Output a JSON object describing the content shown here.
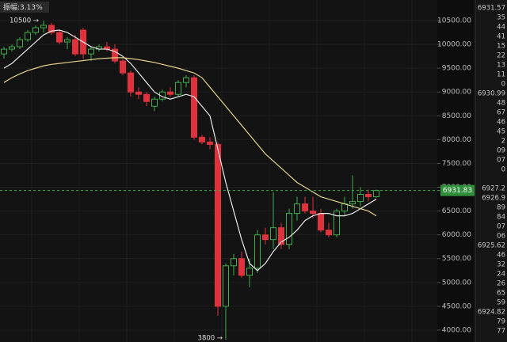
{
  "chart_data": {
    "type": "candlestick",
    "amplitude_label": "振幅:3.13%",
    "open": [
      9800,
      9900,
      9950,
      10100,
      10250,
      10350,
      10400,
      10250,
      10050,
      10100,
      10300,
      9800,
      9900,
      9950,
      9900,
      9650,
      9400,
      9000,
      8950,
      8700,
      8850,
      9000,
      8950,
      9200,
      9300,
      8050,
      7950,
      7900,
      4500,
      5350,
      5500,
      5150,
      5300,
      6000,
      5900,
      6150,
      5800,
      6450,
      6650,
      6500,
      6450,
      6100,
      6000,
      6500,
      6650,
      6700,
      6850,
      6800
    ],
    "high": [
      9950,
      10000,
      10150,
      10300,
      10400,
      10500,
      10450,
      10300,
      10150,
      10200,
      10350,
      9950,
      10000,
      10050,
      10000,
      9700,
      9450,
      9100,
      9000,
      8900,
      9050,
      9100,
      9250,
      9350,
      9350,
      8100,
      8050,
      7950,
      5400,
      5600,
      5650,
      5500,
      6100,
      6150,
      6900,
      6250,
      6550,
      6800,
      6800,
      6800,
      6550,
      6250,
      6550,
      6800,
      7250,
      7000,
      6950,
      6950
    ],
    "low": [
      9700,
      9850,
      9900,
      10050,
      10200,
      10250,
      10200,
      10000,
      9900,
      9750,
      9700,
      9650,
      9850,
      9850,
      9600,
      9350,
      8900,
      8850,
      8700,
      8600,
      8800,
      8900,
      8900,
      9100,
      8000,
      7900,
      7800,
      4300,
      3800,
      5150,
      5100,
      4900,
      5200,
      5800,
      5700,
      5700,
      5700,
      6300,
      6450,
      6350,
      6050,
      5950,
      5950,
      6400,
      6550,
      6600,
      6700,
      6780
    ],
    "close": [
      9900,
      9950,
      10100,
      10250,
      10350,
      10400,
      10250,
      10050,
      10100,
      9800,
      9800,
      9900,
      9950,
      9900,
      9650,
      9400,
      9000,
      8950,
      8800,
      8850,
      9000,
      8950,
      9200,
      9300,
      8050,
      7950,
      7900,
      4500,
      5350,
      5500,
      5150,
      5300,
      6000,
      5900,
      6150,
      5800,
      6450,
      6650,
      6500,
      6450,
      6100,
      6000,
      6500,
      6650,
      6700,
      6850,
      6800,
      6931.83
    ],
    "up_color": "#3fae49",
    "down_color": "#e0323c",
    "series": [
      {
        "color": "#e8e8e8",
        "values": [
          9500,
          9600,
          9750,
          9900,
          10050,
          10200,
          10280,
          10300,
          10250,
          10150,
          10050,
          9950,
          9900,
          9900,
          9850,
          9750,
          9600,
          9400,
          9200,
          9000,
          8900,
          8850,
          8900,
          8950,
          8900,
          8700,
          8500,
          7800,
          7100,
          6500,
          5900,
          5400,
          5250,
          5400,
          5650,
          5850,
          5950,
          6100,
          6300,
          6400,
          6450,
          6450,
          6400,
          6400,
          6450,
          6550,
          6650,
          6750
        ]
      },
      {
        "color": "#e3d38a",
        "values": [
          9200,
          9300,
          9380,
          9450,
          9500,
          9550,
          9580,
          9600,
          9620,
          9640,
          9660,
          9680,
          9700,
          9710,
          9720,
          9720,
          9700,
          9680,
          9650,
          9620,
          9580,
          9540,
          9500,
          9450,
          9400,
          9300,
          9100,
          8900,
          8700,
          8500,
          8300,
          8100,
          7900,
          7700,
          7550,
          7400,
          7250,
          7100,
          7000,
          6900,
          6800,
          6750,
          6700,
          6650,
          6600,
          6550,
          6500,
          6400
        ]
      }
    ],
    "ylim": [
      3750,
      10932
    ],
    "yticks": [
      {
        "value": 4000,
        "label": "4000.00"
      },
      {
        "value": 4500,
        "label": "4500.00"
      },
      {
        "value": 5000,
        "label": "5000.00"
      },
      {
        "value": 5500,
        "label": "5500.00"
      },
      {
        "value": 6000,
        "label": "6000.00"
      },
      {
        "value": 6500,
        "label": "6500.00"
      },
      {
        "value": 7000,
        "label": "7000.00"
      },
      {
        "value": 7500,
        "label": "7500.00"
      },
      {
        "value": 8000,
        "label": "8000.00"
      },
      {
        "value": 8500,
        "label": "8500.00"
      },
      {
        "value": 9000,
        "label": "9000.00"
      },
      {
        "value": 9500,
        "label": "9500.00"
      },
      {
        "value": 10000,
        "label": "10000.00"
      },
      {
        "value": 10500,
        "label": "10500.00"
      }
    ],
    "grid": true,
    "last_price": 6931.83,
    "max_annotation": "10500 →",
    "min_annotation": "3800 →"
  },
  "side_panel": [
    "6931.57",
    "35",
    "44",
    "41",
    "15",
    "22",
    "13",
    "11",
    "0",
    "6930.99",
    "48",
    "67",
    "46",
    "45",
    "2",
    "09",
    "07",
    "0",
    "",
    "6927.2",
    "6926.9",
    "89",
    "84",
    "07",
    "06",
    "6925.62",
    "46",
    "32",
    "24",
    "26",
    "65",
    "59",
    "6924.82",
    "79",
    "77"
  ]
}
